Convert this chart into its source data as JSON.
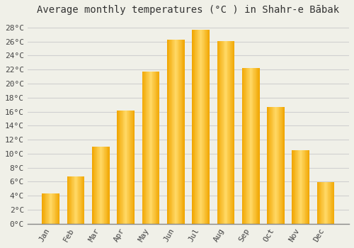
{
  "title": "Average monthly temperatures (°C ) in Shahr-e Bābak",
  "months": [
    "Jan",
    "Feb",
    "Mar",
    "Apr",
    "May",
    "Jun",
    "Jul",
    "Aug",
    "Sep",
    "Oct",
    "Nov",
    "Dec"
  ],
  "values": [
    4.3,
    6.7,
    11.0,
    16.2,
    21.7,
    26.3,
    27.7,
    26.1,
    22.2,
    16.7,
    10.5,
    5.9
  ],
  "bar_color_center": "#FFD966",
  "bar_color_edge": "#F0A500",
  "background_color": "#f0f0e8",
  "grid_color": "#d0d0d0",
  "ylim": [
    0,
    29
  ],
  "ytick_step": 2,
  "title_fontsize": 10,
  "tick_fontsize": 8,
  "font_family": "monospace",
  "bar_width": 0.7
}
